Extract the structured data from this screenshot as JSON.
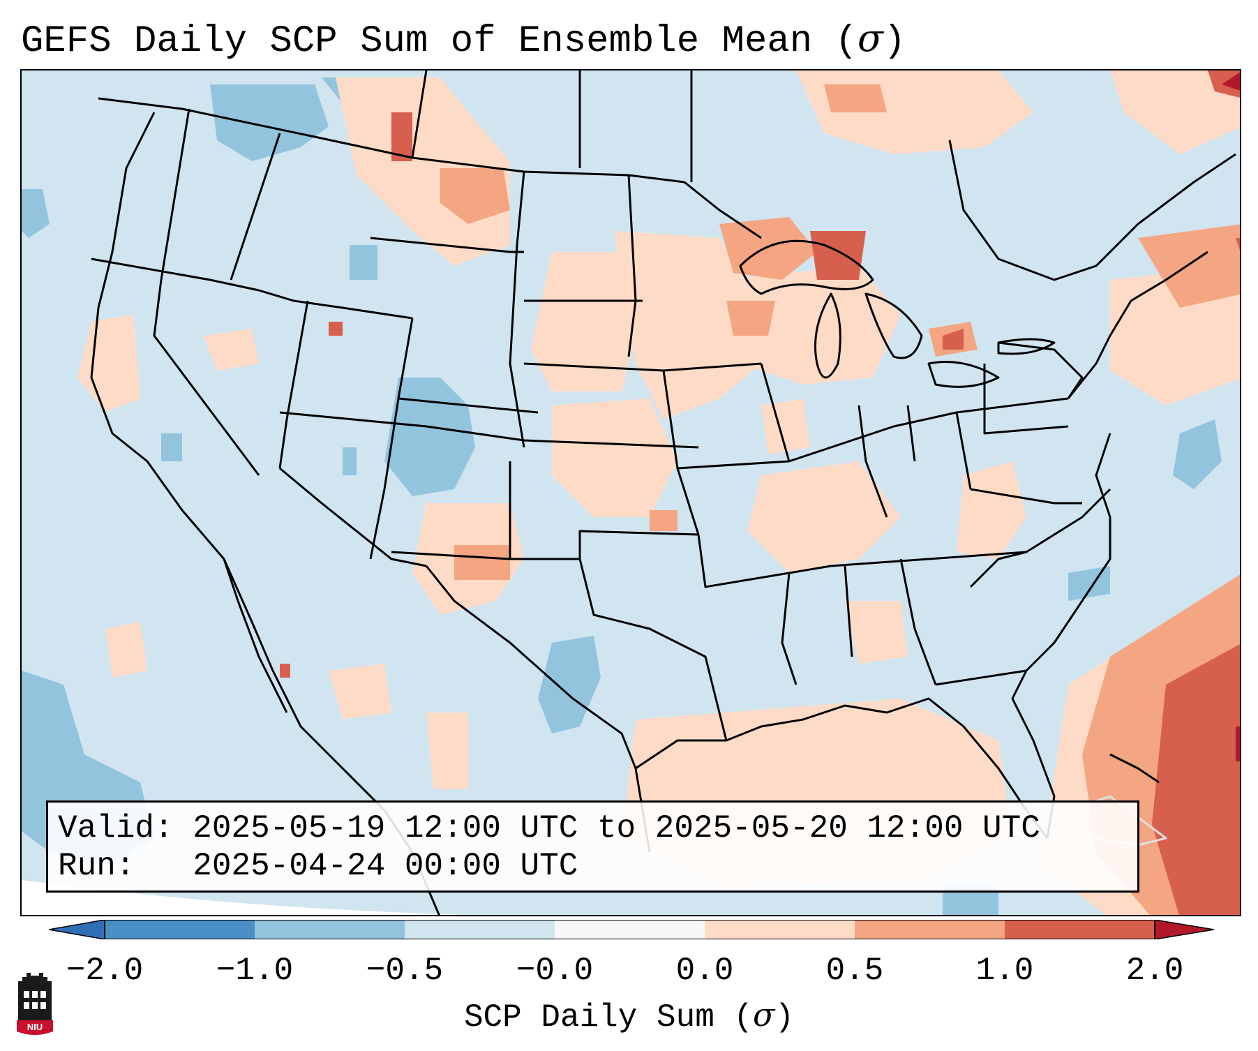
{
  "title": {
    "prefix": "GEFS Daily SCP Sum of Ensemble Mean (",
    "sigma": "σ",
    "suffix": ")"
  },
  "info": {
    "valid_label": "Valid:",
    "valid_value": "2025-05-19 12:00 UTC to 2025-05-20 12:00 UTC",
    "run_label": "Run:",
    "run_value": "2025-04-24 00:00 UTC"
  },
  "colorbar": {
    "ticks": [
      "−2.0",
      "−1.0",
      "−0.5",
      "−0.0",
      "0.0",
      "0.5",
      "1.0",
      "2.0"
    ],
    "colors": {
      "extend_low": "#2f6fb6",
      "below_minus_1": "#4a90c7",
      "minus_1_to_minus_half": "#92c4de",
      "minus_half_to_zero": "#d1e5f0",
      "zero_band": "#f7f7f7",
      "zero_to_half": "#fddbc7",
      "half_to_one": "#f4a582",
      "one_to_two": "#d6604d",
      "extend_high": "#b2182b"
    },
    "label_prefix": "SCP Daily Sum (",
    "label_sigma": "σ",
    "label_suffix": ")"
  },
  "logo": {
    "text": "NIU",
    "icon": "niu-tower-icon"
  },
  "map": {
    "background_color": "#d1e5f0",
    "features": [
      "state-borders",
      "country-borders",
      "coastlines",
      "great-lakes"
    ]
  }
}
